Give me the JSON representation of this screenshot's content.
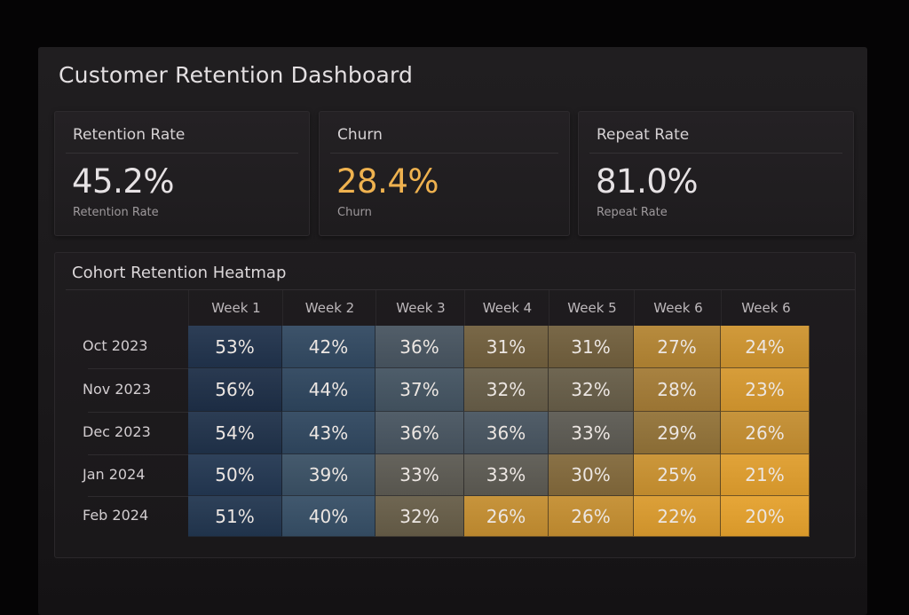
{
  "page_title": "Customer Retention Dashboard",
  "kpis": [
    {
      "label": "Retention Rate",
      "value": "45.2%",
      "sublabel": "Retention Rate",
      "accent": "#e6e2e4"
    },
    {
      "label": "Churn",
      "value": "28.4%",
      "sublabel": "Churn",
      "accent": "#efb24f"
    },
    {
      "label": "Repeat Rate",
      "value": "81.0%",
      "sublabel": "Repeat Rate",
      "accent": "#e6e2e4"
    }
  ],
  "heatmap": {
    "title": "Cohort Retention Heatmap",
    "color_low": "#e8a12c",
    "color_high": "#1b2b40"
  },
  "chart_data": {
    "type": "heatmap",
    "title": "Cohort Retention Heatmap",
    "x": [
      "Week 1",
      "Week 2",
      "Week 3",
      "Week 4",
      "Week 5",
      "Week 6",
      "Week 6"
    ],
    "y": [
      "Oct 2023",
      "Nov 2023",
      "Dec 2023",
      "Jan 2024",
      "Feb 2024"
    ],
    "values": [
      [
        53,
        42,
        36,
        31,
        31,
        27,
        24
      ],
      [
        56,
        44,
        37,
        32,
        32,
        28,
        23
      ],
      [
        54,
        43,
        36,
        36,
        33,
        29,
        26
      ],
      [
        50,
        39,
        33,
        33,
        30,
        25,
        21
      ],
      [
        51,
        40,
        32,
        26,
        26,
        22,
        20
      ]
    ],
    "labels": [
      [
        "53%",
        "42%",
        "36%",
        "31%",
        "31%",
        "27%",
        "24%"
      ],
      [
        "56%",
        "44%",
        "37%",
        "32%",
        "32%",
        "28%",
        "23%"
      ],
      [
        "54%",
        "43%",
        "36%",
        "36%",
        "33%",
        "29%",
        "26%"
      ],
      [
        "50%",
        "39%",
        "33%",
        "33%",
        "30%",
        "25%",
        "21%"
      ],
      [
        "51%",
        "40%",
        "32%",
        "26%",
        "26%",
        "22%",
        "20%"
      ]
    ],
    "unit": "%",
    "xlabel": "",
    "ylabel": ""
  }
}
